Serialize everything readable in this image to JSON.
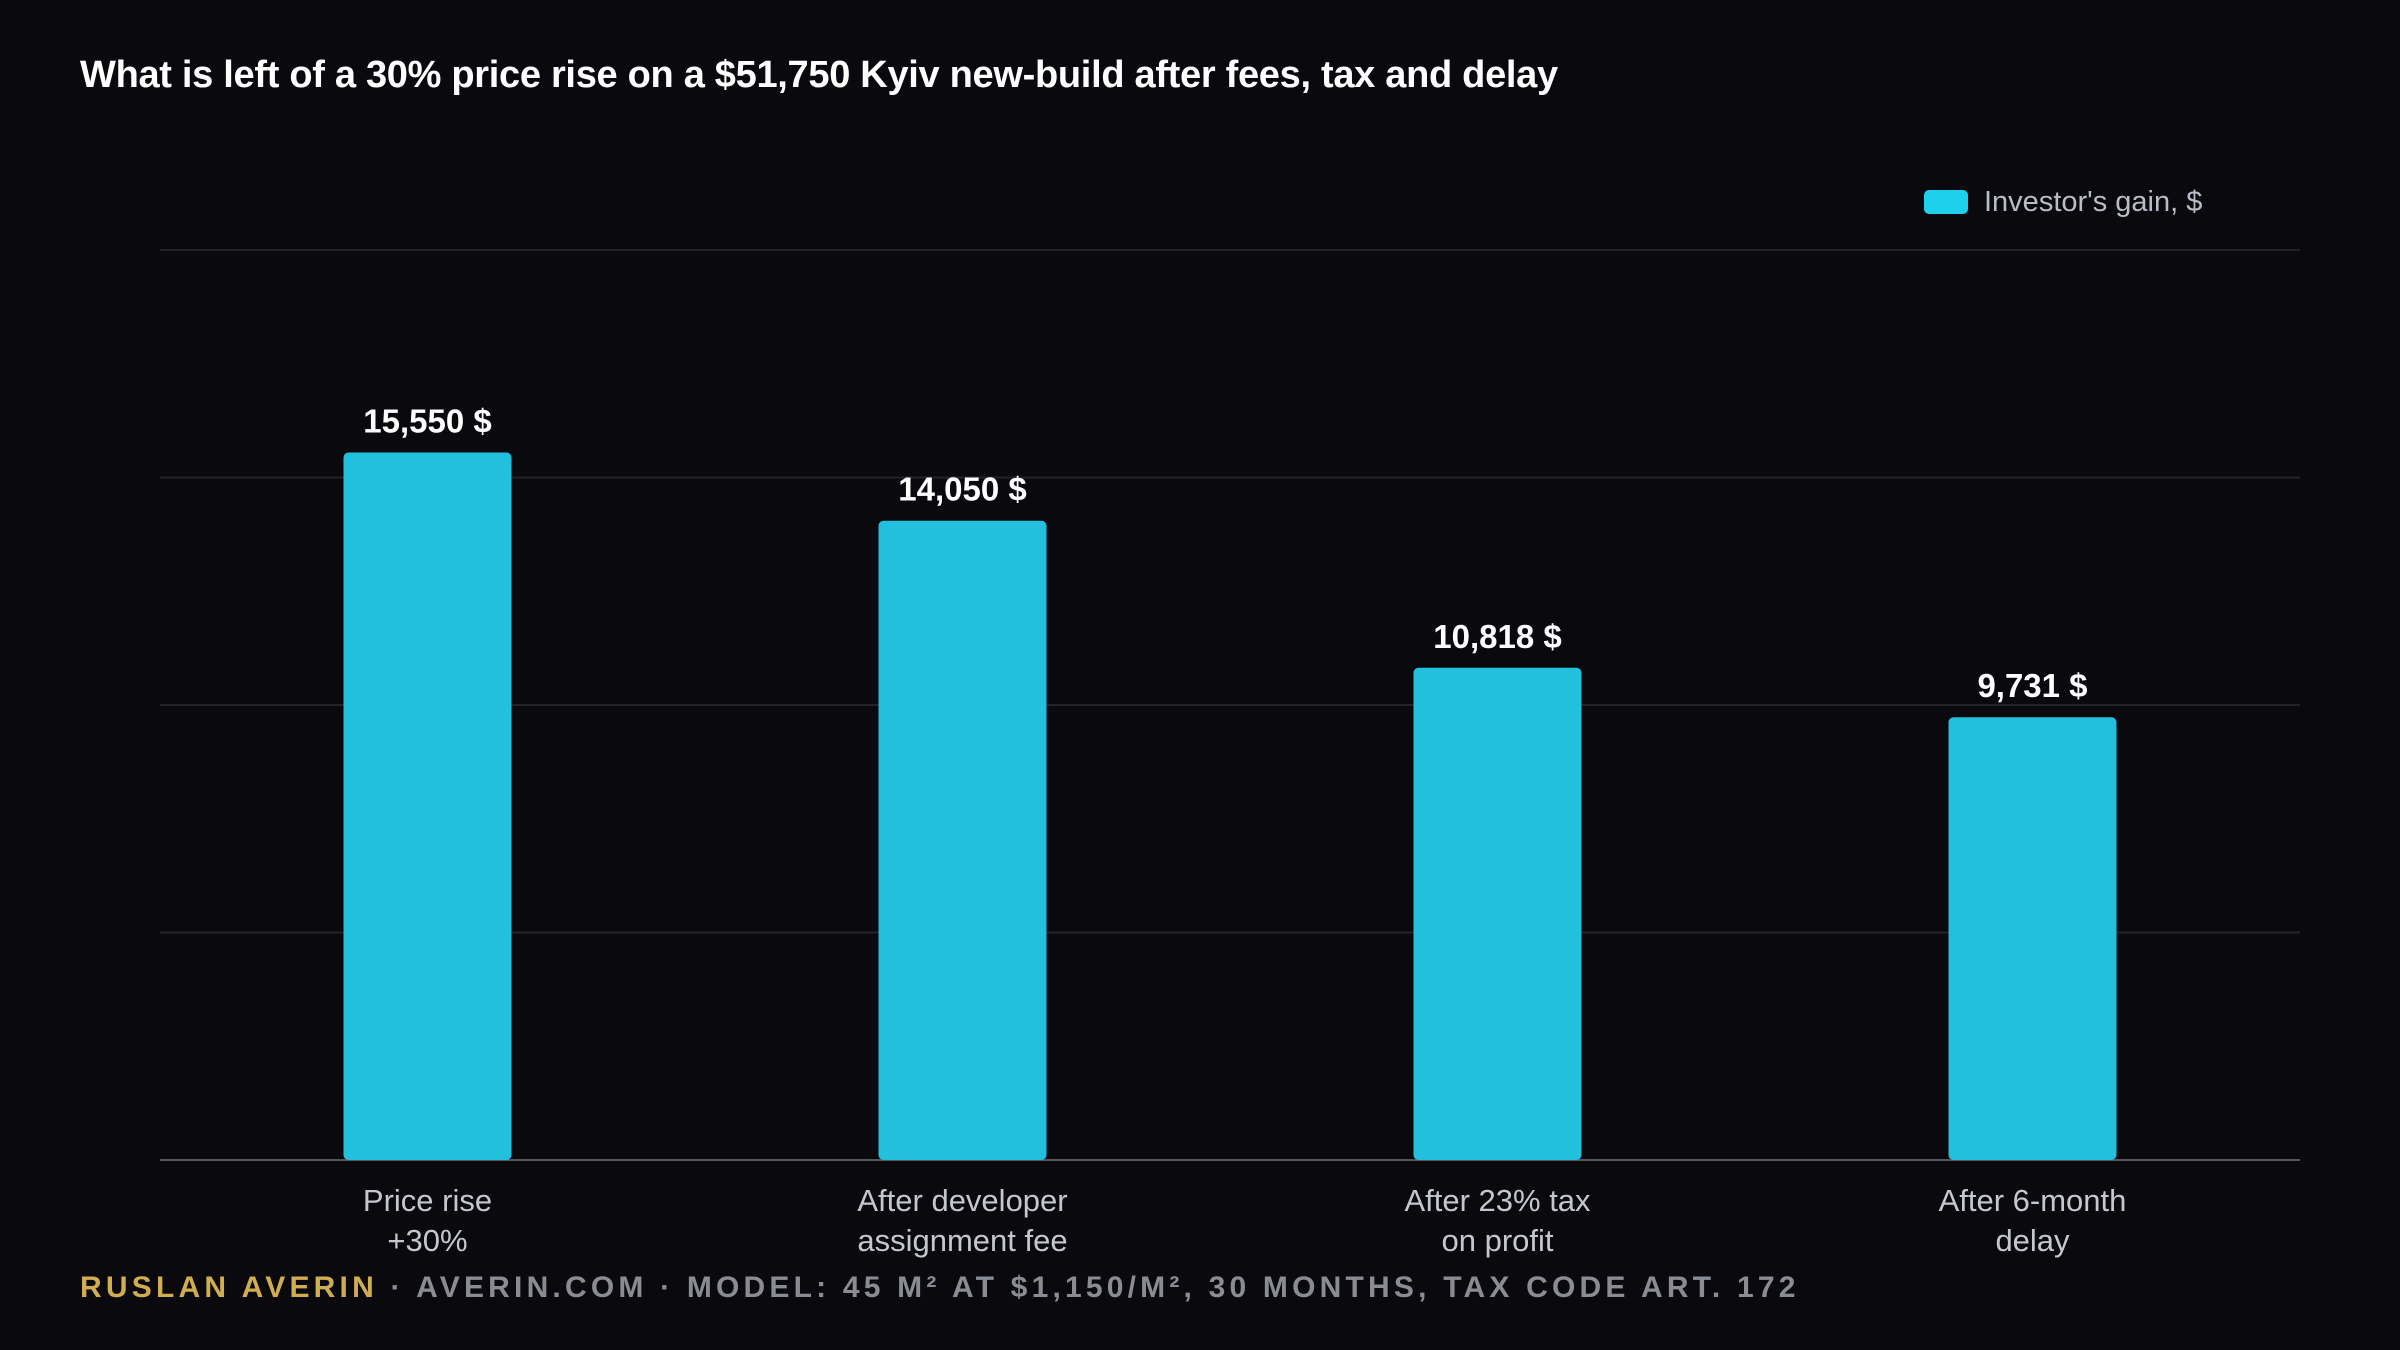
{
  "chart_data": {
    "type": "bar",
    "title": "What is left of a 30% price rise on a $51,750 Kyiv new-build after fees, tax and delay",
    "categories": [
      [
        "Price rise",
        "+30%"
      ],
      [
        "After developer",
        "assignment fee"
      ],
      [
        "After 23% tax",
        "on profit"
      ],
      [
        "After 6-month",
        "delay"
      ]
    ],
    "series": [
      {
        "name": "Investor's gain, $",
        "values": [
          15550,
          14050,
          10818,
          9731
        ],
        "data_labels": [
          "15,550 $",
          "14,050 $",
          "10,818 $",
          "9,731 $"
        ],
        "color": "#22c0dc"
      }
    ],
    "ylim": [
      0,
      20000
    ],
    "y_gridlines": [
      5000,
      10000,
      15000,
      20000
    ],
    "y_tick_labels_visible": false,
    "grid": true,
    "legend_position": "top-right"
  },
  "colors": {
    "background": "#0a0a0e",
    "bar": "#22c0dc",
    "legend_swatch": "#1fd0ec",
    "grid": "#222228",
    "axis": "#55565c",
    "author": "#d1ad52",
    "footer": "#8a8c94"
  },
  "footer": {
    "author": "Ruslan Averin",
    "separator": " · ",
    "site": "averin.com",
    "note": "Model: 45 m² at $1,150/m², 30 months, tax code art. 172"
  }
}
